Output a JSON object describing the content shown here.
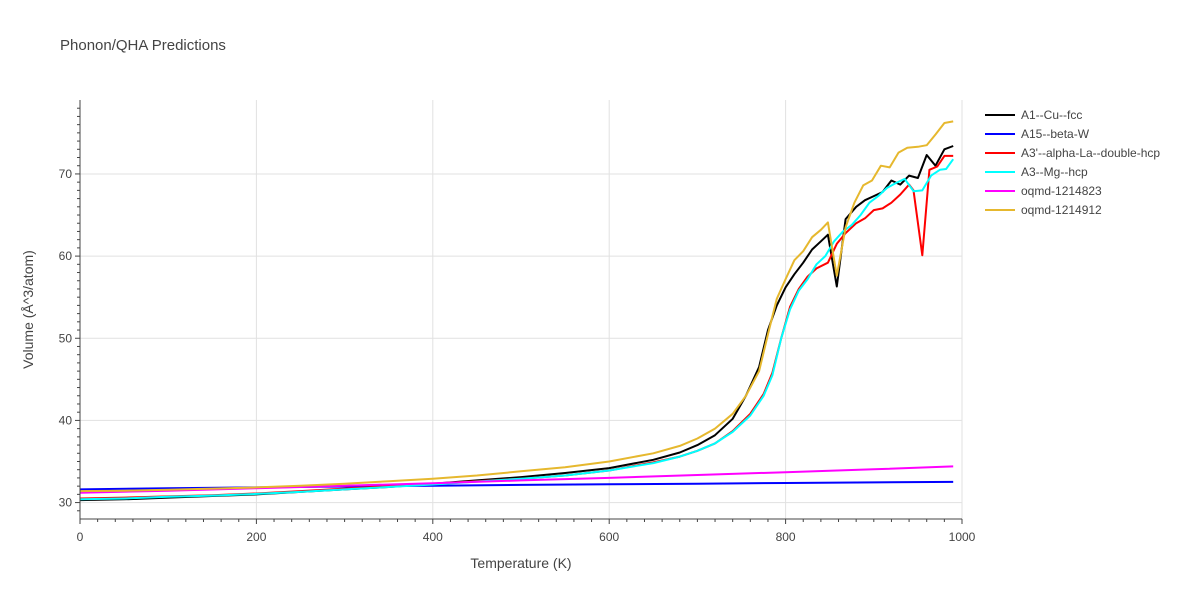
{
  "chart_data": {
    "type": "line",
    "title": "Phonon/QHA Predictions",
    "xlabel": "Temperature (K)",
    "ylabel": "Volume (Å^3/atom)",
    "xlim": [
      0,
      1000
    ],
    "ylim": [
      28,
      79
    ],
    "xticks": [
      0,
      200,
      400,
      600,
      800,
      1000
    ],
    "yticks": [
      30,
      40,
      50,
      60,
      70
    ],
    "grid": true,
    "legend_position": "top-right",
    "series": [
      {
        "name": "A1--Cu--fcc",
        "color": "#000000",
        "points": [
          [
            0,
            30.3
          ],
          [
            50,
            30.4
          ],
          [
            100,
            30.6
          ],
          [
            150,
            30.8
          ],
          [
            200,
            31.0
          ],
          [
            250,
            31.3
          ],
          [
            300,
            31.6
          ],
          [
            350,
            31.9
          ],
          [
            400,
            32.3
          ],
          [
            450,
            32.7
          ],
          [
            500,
            33.1
          ],
          [
            550,
            33.6
          ],
          [
            600,
            34.2
          ],
          [
            650,
            35.2
          ],
          [
            680,
            36.1
          ],
          [
            700,
            37.0
          ],
          [
            720,
            38.2
          ],
          [
            740,
            40.2
          ],
          [
            755,
            43.0
          ],
          [
            770,
            46.5
          ],
          [
            780,
            51.0
          ],
          [
            790,
            54.0
          ],
          [
            800,
            56.2
          ],
          [
            810,
            57.8
          ],
          [
            820,
            59.2
          ],
          [
            830,
            60.8
          ],
          [
            840,
            61.8
          ],
          [
            848,
            62.6
          ],
          [
            858,
            56.3
          ],
          [
            868,
            64.5
          ],
          [
            880,
            66.0
          ],
          [
            890,
            66.8
          ],
          [
            900,
            67.3
          ],
          [
            910,
            67.8
          ],
          [
            920,
            69.2
          ],
          [
            930,
            68.7
          ],
          [
            940,
            69.8
          ],
          [
            950,
            69.5
          ],
          [
            960,
            72.3
          ],
          [
            970,
            71.0
          ],
          [
            980,
            73.0
          ],
          [
            990,
            73.4
          ]
        ]
      },
      {
        "name": "A15--beta-W",
        "color": "#0000ff",
        "points": [
          [
            0,
            31.6
          ],
          [
            100,
            31.75
          ],
          [
            200,
            31.85
          ],
          [
            300,
            31.95
          ],
          [
            400,
            32.05
          ],
          [
            500,
            32.15
          ],
          [
            600,
            32.22
          ],
          [
            700,
            32.3
          ],
          [
            800,
            32.38
          ],
          [
            900,
            32.46
          ],
          [
            990,
            32.52
          ]
        ]
      },
      {
        "name": "A3'--alpha-La--double-hcp",
        "color": "#ff0000",
        "points": [
          [
            0,
            30.5
          ],
          [
            50,
            30.6
          ],
          [
            100,
            30.75
          ],
          [
            150,
            30.9
          ],
          [
            200,
            31.1
          ],
          [
            250,
            31.4
          ],
          [
            300,
            31.7
          ],
          [
            350,
            32.0
          ],
          [
            400,
            32.3
          ],
          [
            450,
            32.6
          ],
          [
            500,
            32.9
          ],
          [
            550,
            33.3
          ],
          [
            600,
            33.9
          ],
          [
            650,
            34.9
          ],
          [
            680,
            35.6
          ],
          [
            700,
            36.3
          ],
          [
            720,
            37.2
          ],
          [
            740,
            38.7
          ],
          [
            760,
            40.8
          ],
          [
            775,
            43.2
          ],
          [
            785,
            45.8
          ],
          [
            795,
            50.0
          ],
          [
            805,
            53.8
          ],
          [
            815,
            56.0
          ],
          [
            825,
            57.5
          ],
          [
            835,
            58.5
          ],
          [
            848,
            59.2
          ],
          [
            858,
            61.5
          ],
          [
            868,
            62.8
          ],
          [
            880,
            64.0
          ],
          [
            890,
            64.6
          ],
          [
            900,
            65.6
          ],
          [
            910,
            65.8
          ],
          [
            920,
            66.5
          ],
          [
            930,
            67.5
          ],
          [
            940,
            68.7
          ],
          [
            945,
            68.0
          ],
          [
            955,
            60.1
          ],
          [
            963,
            70.5
          ],
          [
            972,
            70.9
          ],
          [
            980,
            72.2
          ],
          [
            990,
            72.2
          ]
        ]
      },
      {
        "name": "A3--Mg--hcp",
        "color": "#00ffff",
        "points": [
          [
            0,
            30.4
          ],
          [
            50,
            30.5
          ],
          [
            100,
            30.7
          ],
          [
            150,
            30.85
          ],
          [
            200,
            31.05
          ],
          [
            250,
            31.3
          ],
          [
            300,
            31.6
          ],
          [
            350,
            31.9
          ],
          [
            400,
            32.2
          ],
          [
            450,
            32.55
          ],
          [
            500,
            32.9
          ],
          [
            550,
            33.3
          ],
          [
            600,
            33.9
          ],
          [
            650,
            34.8
          ],
          [
            680,
            35.6
          ],
          [
            700,
            36.3
          ],
          [
            720,
            37.2
          ],
          [
            740,
            38.6
          ],
          [
            760,
            40.6
          ],
          [
            775,
            43.0
          ],
          [
            785,
            45.5
          ],
          [
            795,
            50.0
          ],
          [
            805,
            53.5
          ],
          [
            815,
            55.8
          ],
          [
            825,
            57.2
          ],
          [
            835,
            59.0
          ],
          [
            845,
            60.0
          ],
          [
            855,
            61.8
          ],
          [
            865,
            63.0
          ],
          [
            875,
            63.8
          ],
          [
            885,
            65.0
          ],
          [
            895,
            66.5
          ],
          [
            905,
            67.3
          ],
          [
            915,
            68.3
          ],
          [
            925,
            68.9
          ],
          [
            935,
            69.4
          ],
          [
            945,
            67.9
          ],
          [
            955,
            68.0
          ],
          [
            965,
            69.8
          ],
          [
            975,
            70.5
          ],
          [
            982,
            70.6
          ],
          [
            990,
            71.8
          ]
        ]
      },
      {
        "name": "oqmd-1214823",
        "color": "#ff00ff",
        "points": [
          [
            0,
            31.2
          ],
          [
            100,
            31.45
          ],
          [
            200,
            31.75
          ],
          [
            300,
            32.05
          ],
          [
            400,
            32.35
          ],
          [
            500,
            32.7
          ],
          [
            600,
            33.0
          ],
          [
            700,
            33.35
          ],
          [
            800,
            33.7
          ],
          [
            900,
            34.05
          ],
          [
            990,
            34.4
          ]
        ]
      },
      {
        "name": "oqmd-1214912",
        "color": "#e6b82e",
        "points": [
          [
            0,
            31.4
          ],
          [
            50,
            31.45
          ],
          [
            100,
            31.55
          ],
          [
            150,
            31.7
          ],
          [
            200,
            31.85
          ],
          [
            250,
            32.05
          ],
          [
            300,
            32.3
          ],
          [
            350,
            32.6
          ],
          [
            400,
            32.9
          ],
          [
            450,
            33.3
          ],
          [
            500,
            33.8
          ],
          [
            550,
            34.3
          ],
          [
            600,
            35.0
          ],
          [
            650,
            36.0
          ],
          [
            680,
            36.9
          ],
          [
            700,
            37.8
          ],
          [
            720,
            39.0
          ],
          [
            740,
            40.8
          ],
          [
            755,
            43.0
          ],
          [
            770,
            46.0
          ],
          [
            780,
            50.5
          ],
          [
            790,
            54.8
          ],
          [
            800,
            57.2
          ],
          [
            810,
            59.5
          ],
          [
            820,
            60.6
          ],
          [
            830,
            62.3
          ],
          [
            840,
            63.2
          ],
          [
            848,
            64.1
          ],
          [
            858,
            57.6
          ],
          [
            868,
            63.5
          ],
          [
            878,
            66.5
          ],
          [
            888,
            68.6
          ],
          [
            898,
            69.2
          ],
          [
            908,
            71.0
          ],
          [
            918,
            70.8
          ],
          [
            928,
            72.6
          ],
          [
            938,
            73.2
          ],
          [
            950,
            73.3
          ],
          [
            960,
            73.5
          ],
          [
            970,
            74.8
          ],
          [
            980,
            76.2
          ],
          [
            990,
            76.4
          ]
        ]
      }
    ]
  }
}
